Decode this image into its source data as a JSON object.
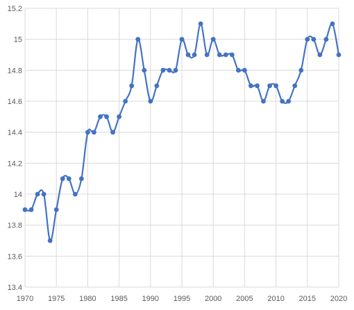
{
  "chart_data": {
    "type": "line",
    "title": "",
    "xlabel": "",
    "ylabel": "",
    "xlim": [
      1970,
      2020
    ],
    "ylim": [
      13.4,
      15.2
    ],
    "x_ticks": [
      "1970",
      "1975",
      "1980",
      "1985",
      "1990",
      "1995",
      "2000",
      "2005",
      "2010",
      "2015",
      "2020"
    ],
    "y_ticks": [
      "13.4",
      "13.6",
      "13.8",
      "14",
      "14.2",
      "14.4",
      "14.6",
      "14.8",
      "15",
      "15.2"
    ],
    "grid": true,
    "legend": "none",
    "smooth": true,
    "series": [
      {
        "name": "",
        "color": "#4472C4",
        "x": [
          1970,
          1971,
          1972,
          1973,
          1974,
          1975,
          1976,
          1977,
          1978,
          1979,
          1980,
          1981,
          1982,
          1983,
          1984,
          1985,
          1986,
          1987,
          1988,
          1989,
          1990,
          1991,
          1992,
          1993,
          1994,
          1995,
          1996,
          1997,
          1998,
          1999,
          2000,
          2001,
          2002,
          2003,
          2004,
          2005,
          2006,
          2007,
          2008,
          2009,
          2010,
          2011,
          2012,
          2013,
          2014,
          2015,
          2016,
          2017,
          2018,
          2019,
          2020
        ],
        "y": [
          13.9,
          13.9,
          14.0,
          14.0,
          13.7,
          13.9,
          14.1,
          14.1,
          14.0,
          14.1,
          14.4,
          14.4,
          14.5,
          14.5,
          14.4,
          14.5,
          14.6,
          14.7,
          15.0,
          14.8,
          14.6,
          14.7,
          14.8,
          14.8,
          14.8,
          15.0,
          14.9,
          14.9,
          15.1,
          14.9,
          15.0,
          14.9,
          14.9,
          14.9,
          14.8,
          14.8,
          14.7,
          14.7,
          14.6,
          14.7,
          14.7,
          14.6,
          14.6,
          14.7,
          14.8,
          15.0,
          15.0,
          14.9,
          15.0,
          15.1,
          14.9
        ]
      }
    ]
  }
}
